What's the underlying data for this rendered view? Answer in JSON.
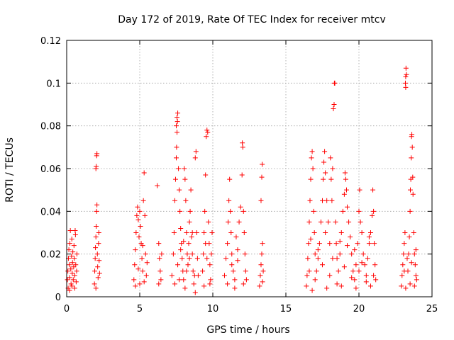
{
  "chart_data": {
    "type": "scatter",
    "title": "Day 172 of 2019, Rate Of TEC Index for receiver mtcv",
    "xlabel": "GPS time / hours",
    "ylabel": "ROTI / TECUs",
    "xlim": [
      0,
      25
    ],
    "ylim": [
      0,
      0.12
    ],
    "xticks": [
      0,
      5,
      10,
      15,
      20,
      25
    ],
    "xtick_labels": [
      "0",
      "5",
      "10",
      "15",
      "20",
      "25"
    ],
    "yticks": [
      0,
      0.02,
      0.04,
      0.06,
      0.08,
      0.1,
      0.12
    ],
    "ytick_labels": [
      "0",
      "0.02",
      "0.04",
      "0.06",
      "0.08",
      "0.1",
      "0.12"
    ],
    "grid": true,
    "marker": "+",
    "color": "#ff0000",
    "series": [
      {
        "name": "ROTI",
        "points": [
          [
            0.05,
            0.008
          ],
          [
            0.08,
            0.012
          ],
          [
            0.12,
            0.018
          ],
          [
            0.15,
            0.022
          ],
          [
            0.18,
            0.015
          ],
          [
            0.2,
            0.009
          ],
          [
            0.22,
            0.025
          ],
          [
            0.25,
            0.031
          ],
          [
            0.28,
            0.013
          ],
          [
            0.3,
            0.006
          ],
          [
            0.33,
            0.019
          ],
          [
            0.35,
            0.027
          ],
          [
            0.38,
            0.011
          ],
          [
            0.4,
            0.016
          ],
          [
            0.42,
            0.021
          ],
          [
            0.45,
            0.008
          ],
          [
            0.48,
            0.014
          ],
          [
            0.5,
            0.024
          ],
          [
            0.52,
            0.018
          ],
          [
            0.55,
            0.01
          ],
          [
            0.58,
            0.031
          ],
          [
            0.6,
            0.029
          ],
          [
            0.62,
            0.015
          ],
          [
            0.65,
            0.007
          ],
          [
            0.68,
            0.012
          ],
          [
            0.7,
            0.02
          ],
          [
            0.1,
            0.004
          ],
          [
            0.2,
            0.003
          ],
          [
            0.35,
            0.005
          ],
          [
            0.55,
            0.004
          ],
          [
            1.9,
            0.006
          ],
          [
            1.92,
            0.012
          ],
          [
            1.95,
            0.018
          ],
          [
            1.97,
            0.023
          ],
          [
            2.0,
            0.028
          ],
          [
            2.02,
            0.033
          ],
          [
            2.05,
            0.04
          ],
          [
            2.07,
            0.043
          ],
          [
            2.0,
            0.06
          ],
          [
            2.02,
            0.061
          ],
          [
            2.05,
            0.066
          ],
          [
            2.07,
            0.067
          ],
          [
            2.1,
            0.02
          ],
          [
            2.12,
            0.014
          ],
          [
            2.15,
            0.009
          ],
          [
            2.18,
            0.025
          ],
          [
            2.2,
            0.03
          ],
          [
            2.22,
            0.017
          ],
          [
            2.25,
            0.011
          ],
          [
            2.0,
            0.004
          ],
          [
            4.6,
            0.008
          ],
          [
            4.65,
            0.015
          ],
          [
            4.7,
            0.022
          ],
          [
            4.75,
            0.03
          ],
          [
            4.8,
            0.038
          ],
          [
            4.85,
            0.042
          ],
          [
            4.9,
            0.036
          ],
          [
            4.95,
            0.028
          ],
          [
            5.0,
            0.04
          ],
          [
            5.05,
            0.033
          ],
          [
            5.1,
            0.025
          ],
          [
            5.15,
            0.018
          ],
          [
            5.2,
            0.012
          ],
          [
            5.25,
            0.045
          ],
          [
            5.3,
            0.058
          ],
          [
            5.35,
            0.038
          ],
          [
            5.4,
            0.02
          ],
          [
            5.45,
            0.01
          ],
          [
            5.5,
            0.016
          ],
          [
            4.7,
            0.005
          ],
          [
            5.0,
            0.006
          ],
          [
            5.3,
            0.007
          ],
          [
            4.9,
            0.013
          ],
          [
            5.2,
            0.024
          ],
          [
            6.2,
            0.052
          ],
          [
            6.3,
            0.025
          ],
          [
            6.35,
            0.018
          ],
          [
            6.4,
            0.012
          ],
          [
            6.45,
            0.008
          ],
          [
            6.5,
            0.02
          ],
          [
            6.3,
            0.006
          ],
          [
            7.2,
            0.01
          ],
          [
            7.3,
            0.02
          ],
          [
            7.35,
            0.03
          ],
          [
            7.4,
            0.045
          ],
          [
            7.45,
            0.055
          ],
          [
            7.5,
            0.065
          ],
          [
            7.52,
            0.07
          ],
          [
            7.55,
            0.077
          ],
          [
            7.5,
            0.08
          ],
          [
            7.55,
            0.084
          ],
          [
            7.6,
            0.086
          ],
          [
            7.58,
            0.082
          ],
          [
            7.65,
            0.06
          ],
          [
            7.7,
            0.05
          ],
          [
            7.75,
            0.04
          ],
          [
            7.8,
            0.032
          ],
          [
            7.85,
            0.025
          ],
          [
            7.9,
            0.018
          ],
          [
            7.95,
            0.012
          ],
          [
            8.0,
            0.008
          ],
          [
            8.05,
            0.06
          ],
          [
            8.1,
            0.055
          ],
          [
            8.15,
            0.045
          ],
          [
            8.2,
            0.03
          ],
          [
            8.25,
            0.02
          ],
          [
            8.3,
            0.015
          ],
          [
            8.35,
            0.025
          ],
          [
            8.4,
            0.035
          ],
          [
            8.45,
            0.04
          ],
          [
            8.5,
            0.05
          ],
          [
            8.55,
            0.028
          ],
          [
            8.6,
            0.02
          ],
          [
            8.65,
            0.012
          ],
          [
            8.7,
            0.006
          ],
          [
            8.75,
            0.01
          ],
          [
            8.8,
            0.065
          ],
          [
            8.85,
            0.068
          ],
          [
            8.9,
            0.03
          ],
          [
            8.95,
            0.018
          ],
          [
            9.0,
            0.01
          ],
          [
            7.6,
            0.015
          ],
          [
            7.8,
            0.022
          ],
          [
            8.0,
            0.026
          ],
          [
            8.2,
            0.012
          ],
          [
            8.4,
            0.018
          ],
          [
            8.6,
            0.03
          ],
          [
            8.8,
            0.002
          ],
          [
            7.4,
            0.006
          ],
          [
            7.7,
            0.008
          ],
          [
            8.1,
            0.004
          ],
          [
            9.3,
            0.012
          ],
          [
            9.35,
            0.02
          ],
          [
            9.4,
            0.03
          ],
          [
            9.45,
            0.04
          ],
          [
            9.5,
            0.057
          ],
          [
            9.55,
            0.075
          ],
          [
            9.6,
            0.078
          ],
          [
            9.65,
            0.077
          ],
          [
            9.7,
            0.035
          ],
          [
            9.75,
            0.025
          ],
          [
            9.8,
            0.015
          ],
          [
            9.85,
            0.008
          ],
          [
            9.9,
            0.02
          ],
          [
            9.95,
            0.03
          ],
          [
            9.4,
            0.005
          ],
          [
            9.6,
            0.018
          ],
          [
            9.8,
            0.006
          ],
          [
            9.5,
            0.025
          ],
          [
            10.8,
            0.01
          ],
          [
            10.9,
            0.018
          ],
          [
            11.0,
            0.025
          ],
          [
            11.05,
            0.035
          ],
          [
            11.1,
            0.045
          ],
          [
            11.15,
            0.055
          ],
          [
            11.2,
            0.04
          ],
          [
            11.25,
            0.03
          ],
          [
            11.3,
            0.02
          ],
          [
            11.4,
            0.012
          ],
          [
            11.5,
            0.008
          ],
          [
            11.6,
            0.028
          ],
          [
            11.7,
            0.022
          ],
          [
            11.8,
            0.035
          ],
          [
            11.9,
            0.042
          ],
          [
            12.0,
            0.057
          ],
          [
            12.02,
            0.072
          ],
          [
            12.05,
            0.07
          ],
          [
            12.1,
            0.04
          ],
          [
            12.15,
            0.03
          ],
          [
            12.2,
            0.02
          ],
          [
            12.25,
            0.012
          ],
          [
            12.3,
            0.008
          ],
          [
            11.0,
            0.006
          ],
          [
            11.5,
            0.004
          ],
          [
            12.1,
            0.006
          ],
          [
            11.3,
            0.015
          ],
          [
            11.7,
            0.017
          ],
          [
            13.2,
            0.005
          ],
          [
            13.25,
            0.01
          ],
          [
            13.3,
            0.015
          ],
          [
            13.35,
            0.02
          ],
          [
            13.4,
            0.025
          ],
          [
            13.3,
            0.045
          ],
          [
            13.35,
            0.056
          ],
          [
            13.38,
            0.062
          ],
          [
            13.45,
            0.012
          ],
          [
            13.4,
            0.007
          ],
          [
            16.4,
            0.005
          ],
          [
            16.45,
            0.01
          ],
          [
            16.5,
            0.018
          ],
          [
            16.55,
            0.025
          ],
          [
            16.6,
            0.035
          ],
          [
            16.65,
            0.045
          ],
          [
            16.7,
            0.055
          ],
          [
            16.75,
            0.065
          ],
          [
            16.8,
            0.068
          ],
          [
            16.85,
            0.06
          ],
          [
            16.9,
            0.04
          ],
          [
            16.95,
            0.03
          ],
          [
            17.0,
            0.02
          ],
          [
            17.1,
            0.012
          ],
          [
            17.2,
            0.018
          ],
          [
            17.3,
            0.025
          ],
          [
            17.4,
            0.035
          ],
          [
            17.5,
            0.045
          ],
          [
            17.55,
            0.055
          ],
          [
            17.6,
            0.063
          ],
          [
            17.65,
            0.068
          ],
          [
            17.7,
            0.058
          ],
          [
            17.8,
            0.045
          ],
          [
            17.9,
            0.035
          ],
          [
            18.0,
            0.025
          ],
          [
            18.05,
            0.065
          ],
          [
            18.1,
            0.055
          ],
          [
            18.15,
            0.045
          ],
          [
            18.2,
            0.06
          ],
          [
            18.25,
            0.088
          ],
          [
            18.3,
            0.09
          ],
          [
            18.32,
            0.1
          ],
          [
            18.35,
            0.1
          ],
          [
            18.4,
            0.035
          ],
          [
            18.45,
            0.025
          ],
          [
            18.5,
            0.018
          ],
          [
            18.6,
            0.012
          ],
          [
            18.7,
            0.02
          ],
          [
            18.8,
            0.03
          ],
          [
            18.9,
            0.04
          ],
          [
            19.0,
            0.048
          ],
          [
            19.05,
            0.058
          ],
          [
            19.1,
            0.055
          ],
          [
            19.15,
            0.05
          ],
          [
            19.2,
            0.042
          ],
          [
            19.3,
            0.035
          ],
          [
            19.4,
            0.028
          ],
          [
            19.5,
            0.02
          ],
          [
            19.6,
            0.012
          ],
          [
            19.7,
            0.008
          ],
          [
            19.8,
            0.015
          ],
          [
            19.9,
            0.025
          ],
          [
            20.0,
            0.04
          ],
          [
            20.05,
            0.05
          ],
          [
            20.1,
            0.035
          ],
          [
            20.2,
            0.03
          ],
          [
            20.3,
            0.02
          ],
          [
            20.4,
            0.015
          ],
          [
            20.5,
            0.01
          ],
          [
            20.6,
            0.018
          ],
          [
            20.7,
            0.025
          ],
          [
            20.8,
            0.03
          ],
          [
            20.9,
            0.038
          ],
          [
            20.95,
            0.05
          ],
          [
            21.0,
            0.04
          ],
          [
            21.05,
            0.025
          ],
          [
            21.1,
            0.015
          ],
          [
            21.15,
            0.008
          ],
          [
            16.6,
            0.012
          ],
          [
            17.0,
            0.008
          ],
          [
            17.5,
            0.015
          ],
          [
            18.0,
            0.01
          ],
          [
            18.5,
            0.006
          ],
          [
            19.0,
            0.014
          ],
          [
            19.5,
            0.009
          ],
          [
            20.0,
            0.012
          ],
          [
            20.5,
            0.007
          ],
          [
            21.0,
            0.01
          ],
          [
            16.8,
            0.003
          ],
          [
            17.8,
            0.004
          ],
          [
            18.8,
            0.005
          ],
          [
            19.8,
            0.004
          ],
          [
            20.8,
            0.005
          ],
          [
            17.2,
            0.022
          ],
          [
            18.2,
            0.018
          ],
          [
            19.2,
            0.024
          ],
          [
            20.2,
            0.016
          ],
          [
            16.7,
            0.027
          ],
          [
            17.7,
            0.03
          ],
          [
            18.7,
            0.026
          ],
          [
            19.7,
            0.022
          ],
          [
            20.7,
            0.028
          ],
          [
            22.9,
            0.005
          ],
          [
            22.95,
            0.01
          ],
          [
            23.0,
            0.015
          ],
          [
            23.05,
            0.02
          ],
          [
            23.1,
            0.025
          ],
          [
            23.15,
            0.03
          ],
          [
            23.2,
            0.103
          ],
          [
            23.22,
            0.107
          ],
          [
            23.25,
            0.104
          ],
          [
            23.18,
            0.1
          ],
          [
            23.2,
            0.098
          ],
          [
            23.3,
            0.018
          ],
          [
            23.35,
            0.012
          ],
          [
            23.4,
            0.02
          ],
          [
            23.45,
            0.028
          ],
          [
            23.5,
            0.04
          ],
          [
            23.52,
            0.05
          ],
          [
            23.55,
            0.055
          ],
          [
            23.58,
            0.065
          ],
          [
            23.6,
            0.075
          ],
          [
            23.62,
            0.076
          ],
          [
            23.65,
            0.07
          ],
          [
            23.68,
            0.056
          ],
          [
            23.7,
            0.048
          ],
          [
            23.75,
            0.03
          ],
          [
            23.8,
            0.02
          ],
          [
            23.85,
            0.015
          ],
          [
            23.9,
            0.01
          ],
          [
            23.95,
            0.008
          ],
          [
            23.2,
            0.004
          ],
          [
            23.5,
            0.006
          ],
          [
            23.8,
            0.005
          ],
          [
            23.1,
            0.012
          ],
          [
            23.6,
            0.016
          ],
          [
            23.9,
            0.022
          ]
        ]
      }
    ]
  }
}
